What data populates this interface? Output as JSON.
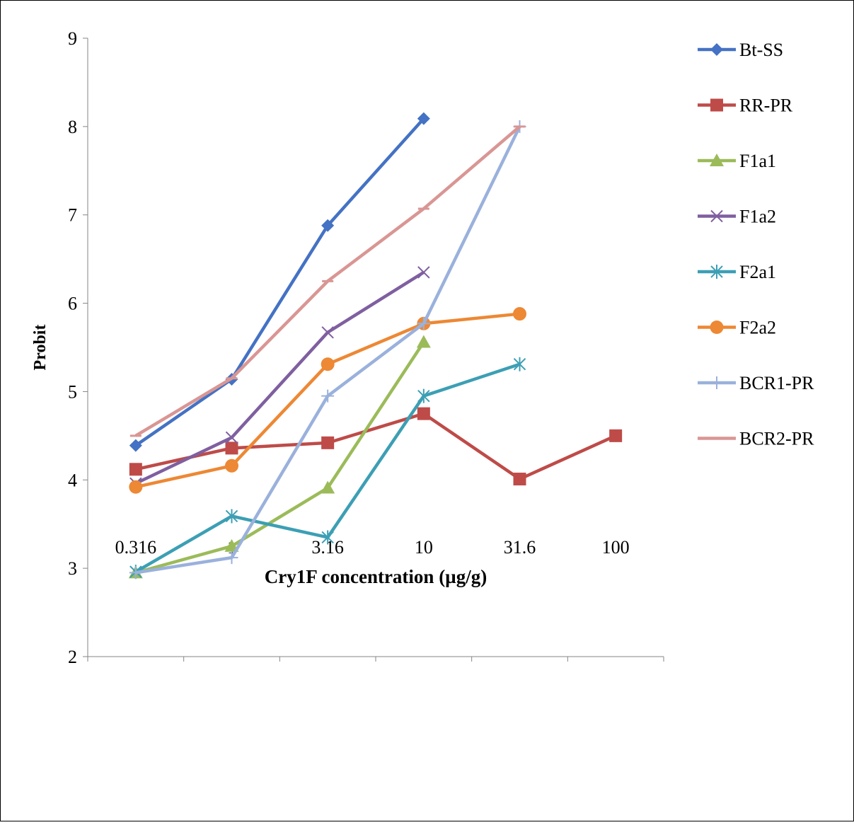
{
  "chart_data": {
    "type": "line",
    "title": "",
    "xlabel": "Cry1F concentration (µg/g)",
    "ylabel": "Probit",
    "categories": [
      "0.316",
      "1",
      "3.16",
      "10",
      "31.6",
      "100"
    ],
    "ylim": [
      2,
      9
    ],
    "yticks": [
      "2",
      "3",
      "4",
      "5",
      "6",
      "7",
      "8",
      "9"
    ],
    "grid": false,
    "legend_position": "right",
    "series": [
      {
        "name": "Bt-SS",
        "color": "#4472C4",
        "marker": "diamond",
        "values": [
          4.39,
          5.14,
          6.88,
          8.09,
          null,
          null
        ]
      },
      {
        "name": "RR-PR",
        "color": "#BE4B48",
        "marker": "square",
        "values": [
          4.12,
          4.36,
          4.42,
          4.75,
          4.01,
          4.5
        ]
      },
      {
        "name": "F1a1",
        "color": "#9BBB59",
        "marker": "triangle",
        "values": [
          2.95,
          3.25,
          3.91,
          5.56,
          null,
          null
        ]
      },
      {
        "name": "F1a2",
        "color": "#7F5FA0",
        "marker": "x",
        "values": [
          3.96,
          4.48,
          5.67,
          6.35,
          null,
          null
        ]
      },
      {
        "name": "F2a1",
        "color": "#3C9FB4",
        "marker": "asterisk",
        "values": [
          2.96,
          3.59,
          3.35,
          4.95,
          5.31,
          null
        ]
      },
      {
        "name": "F2a2",
        "color": "#ED8834",
        "marker": "circle",
        "values": [
          3.92,
          4.16,
          5.31,
          5.77,
          5.88,
          null
        ]
      },
      {
        "name": "BCR1-PR",
        "color": "#9AB1DC",
        "marker": "plus",
        "values": [
          2.95,
          3.12,
          4.95,
          5.77,
          8.0,
          null
        ]
      },
      {
        "name": "BCR2-PR",
        "color": "#D99694",
        "marker": "dash",
        "values": [
          4.5,
          5.15,
          6.25,
          7.07,
          8.0,
          null
        ]
      }
    ]
  }
}
